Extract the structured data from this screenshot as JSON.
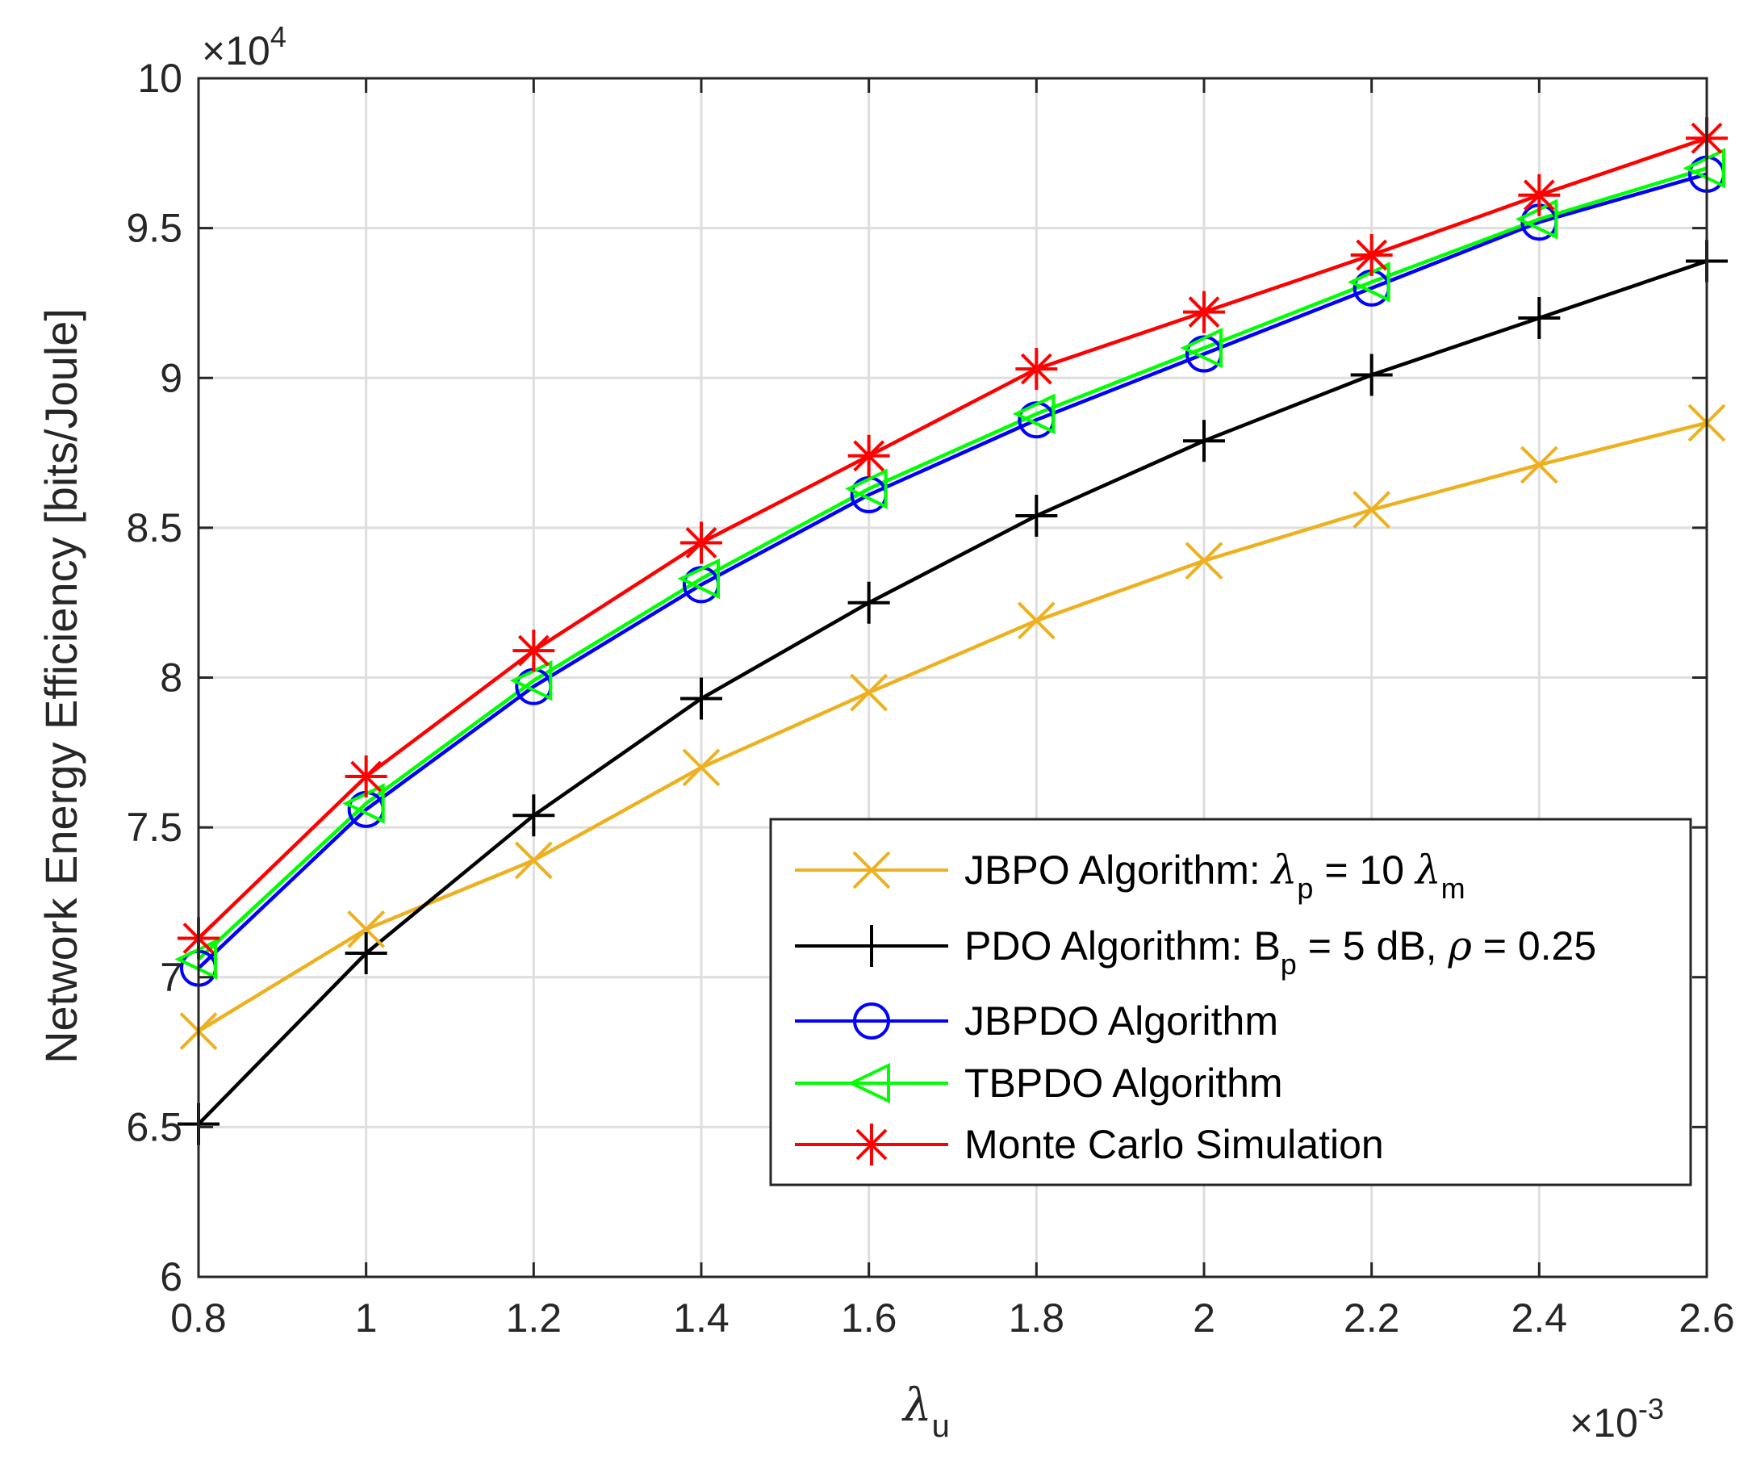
{
  "chart_data": {
    "type": "line",
    "title": "",
    "xlabel": {
      "symbol": "λ",
      "subscript": "u"
    },
    "ylabel": "Network Energy Efficiency [bits/Joule]",
    "x_multiplier": "×10",
    "x_multiplier_exp": "-3",
    "y_multiplier": "×10",
    "y_multiplier_exp": "4",
    "xlim": [
      0.8,
      2.6
    ],
    "ylim": [
      6,
      10
    ],
    "xticks": [
      0.8,
      1,
      1.2,
      1.4,
      1.6,
      1.8,
      2,
      2.2,
      2.4,
      2.6
    ],
    "xtick_labels": [
      "0.8",
      "1",
      "1.2",
      "1.4",
      "1.6",
      "1.8",
      "2",
      "2.2",
      "2.4",
      "2.6"
    ],
    "yticks": [
      6,
      6.5,
      7,
      7.5,
      8,
      8.5,
      9,
      9.5,
      10
    ],
    "ytick_labels": [
      "6",
      "6.5",
      "7",
      "7.5",
      "8",
      "8.5",
      "9",
      "9.5",
      "10"
    ],
    "grid": true,
    "legend_position": "lower-right",
    "x": [
      0.8,
      1.0,
      1.2,
      1.4,
      1.6,
      1.8,
      2.0,
      2.2,
      2.4,
      2.6
    ],
    "series": [
      {
        "id": "jbpo",
        "name": "JBPO Algorithm",
        "color": "#EDB120",
        "marker": "x",
        "values": [
          6.82,
          7.16,
          7.39,
          7.7,
          7.95,
          8.19,
          8.39,
          8.56,
          8.71,
          8.85
        ],
        "legend": {
          "prefix": "JBPO Algorithm: ",
          "s1": "λ",
          "sub1": "p",
          "mid": " = 10 ",
          "s2": "λ",
          "sub2": "m"
        }
      },
      {
        "id": "pdo",
        "name": "PDO Algorithm",
        "color": "#000000",
        "marker": "+",
        "values": [
          6.51,
          7.08,
          7.54,
          7.93,
          8.25,
          8.54,
          8.79,
          9.01,
          9.2,
          9.39
        ],
        "legend": {
          "prefix": "PDO Algorithm: B",
          "sub1": "p",
          "mid": " = 5 dB, ",
          "s2": "ρ",
          "tail": " = 0.25"
        }
      },
      {
        "id": "jbpdo",
        "name": "JBPDO Algorithm",
        "color": "#0000FF",
        "marker": "o",
        "values": [
          7.03,
          7.56,
          7.97,
          8.31,
          8.61,
          8.86,
          9.08,
          9.3,
          9.52,
          9.68
        ],
        "legend": {
          "prefix": "JBPDO Algorithm"
        }
      },
      {
        "id": "tbpdo",
        "name": "TBPDO Algorithm",
        "color": "#00FF00",
        "marker": "<",
        "values": [
          7.06,
          7.58,
          7.99,
          8.33,
          8.63,
          8.88,
          9.1,
          9.32,
          9.53,
          9.7
        ],
        "legend": {
          "prefix": "TBPDO Algorithm"
        }
      },
      {
        "id": "monte",
        "name": "Monte Carlo Simulation",
        "color": "#FF0000",
        "marker": "*",
        "values": [
          7.13,
          7.67,
          8.09,
          8.45,
          8.74,
          9.03,
          9.22,
          9.41,
          9.61,
          9.8
        ],
        "legend": {
          "prefix": "Monte Carlo Simulation"
        }
      }
    ]
  }
}
